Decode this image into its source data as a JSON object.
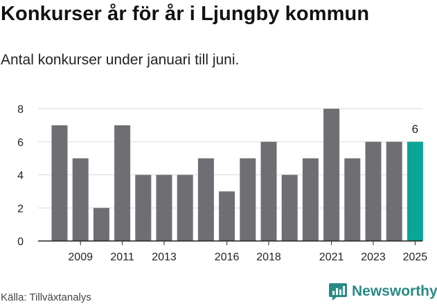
{
  "header": {
    "title": "Konkurser år för år i Ljungby kommun",
    "subtitle": "Antal konkurser under januari till juni."
  },
  "footer": {
    "source": "Källa: Tillväxtanalys",
    "brand": "Newsworthy"
  },
  "colors": {
    "bar": "#6f6e73",
    "highlight": "#0aa596",
    "grid": "#d9d9d9",
    "axis": "#222222",
    "brand": "#2a8a85"
  },
  "chart_data": {
    "type": "bar",
    "categories": [
      "2008",
      "2009",
      "2010",
      "2011",
      "2012",
      "2013",
      "2014",
      "2015",
      "2016",
      "2017",
      "2018",
      "2019",
      "2020",
      "2021",
      "2022",
      "2023",
      "2024",
      "2025"
    ],
    "values": [
      7,
      5,
      2,
      7,
      4,
      4,
      4,
      5,
      3,
      5,
      6,
      4,
      5,
      8,
      5,
      6,
      6,
      6
    ],
    "tick_labels": [
      "2009",
      "2011",
      "2013",
      "2016",
      "2018",
      "2021",
      "2023",
      "2025"
    ],
    "highlight": "2025",
    "data_labels": [
      {
        "category": "2025",
        "text": "6"
      }
    ],
    "yticks": [
      0,
      2,
      4,
      6,
      8
    ],
    "ylim": [
      0,
      8
    ],
    "grid": true,
    "legend": "none",
    "xlabel": "",
    "ylabel": ""
  }
}
